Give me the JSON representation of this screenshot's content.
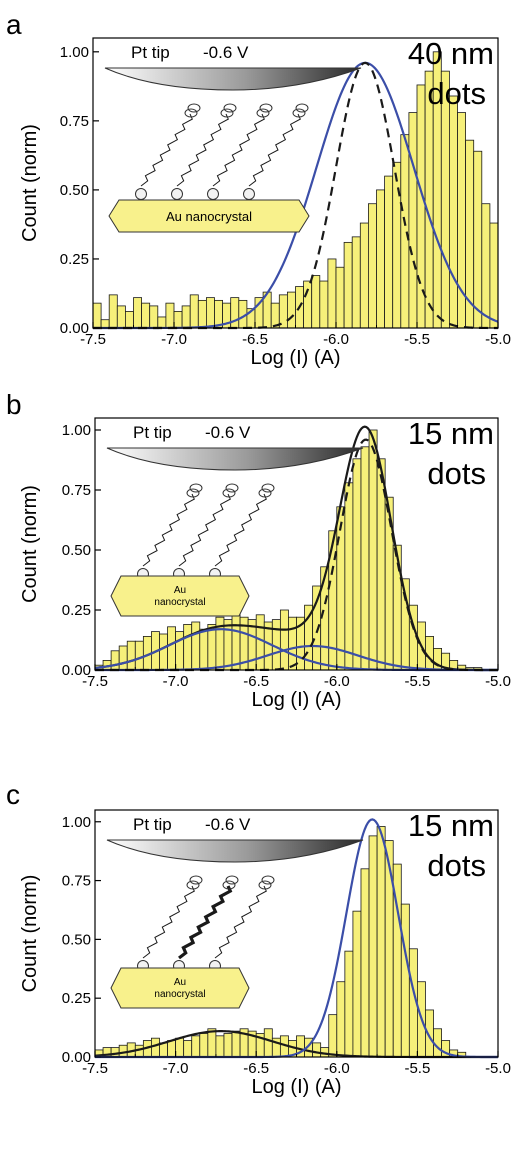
{
  "chart_data": [
    {
      "panel_letter": "a",
      "type": "bar",
      "xlabel": "Log (I) (A)",
      "ylabel": "Count (norm)",
      "xlim": [
        -7.5,
        -5.0
      ],
      "ylim": [
        0,
        1.05
      ],
      "xticks": [
        "-7.5",
        "-7.0",
        "-6.5",
        "-6.0",
        "-5.5",
        "-5.0"
      ],
      "yticks": [
        "0.00",
        "0.25",
        "0.50",
        "0.75",
        "1.00"
      ],
      "annotation": [
        "40 nm",
        "dots"
      ],
      "inset": {
        "tip_label": "Pt tip",
        "bias_label": "-0.6 V",
        "crystal_label": "Au nanocrystal",
        "n_molecules": 4,
        "bold_molecule": -1
      },
      "bins": {
        "x_start": -7.5,
        "width": 0.05,
        "values": [
          0.09,
          0.03,
          0.12,
          0.08,
          0.06,
          0.11,
          0.09,
          0.08,
          0.04,
          0.09,
          0.06,
          0.08,
          0.12,
          0.1,
          0.11,
          0.1,
          0.09,
          0.11,
          0.1,
          0.07,
          0.11,
          0.13,
          0.09,
          0.12,
          0.13,
          0.15,
          0.17,
          0.19,
          0.17,
          0.25,
          0.22,
          0.31,
          0.33,
          0.38,
          0.45,
          0.5,
          0.55,
          0.6,
          0.7,
          0.78,
          0.88,
          0.93,
          1.0,
          0.93,
          0.84,
          0.78,
          0.68,
          0.64,
          0.45,
          0.38,
          0.13,
          0.03
        ]
      },
      "series": [
        {
          "name": "",
          "kind": "gaussian",
          "color": "#3b4ea8",
          "dash": false,
          "mu": -5.82,
          "sigma": 0.3,
          "amp": 0.96
        },
        {
          "name": "",
          "kind": "gaussian",
          "color": "#1a1a1a",
          "dash": true,
          "mu": -5.82,
          "sigma": 0.18,
          "amp": 0.96
        }
      ]
    },
    {
      "panel_letter": "b",
      "type": "bar",
      "xlabel": "Log (I) (A)",
      "ylabel": "Count (norm)",
      "xlim": [
        -7.5,
        -5.0
      ],
      "ylim": [
        0,
        1.05
      ],
      "xticks": [
        "-7.5",
        "-7.0",
        "-6.5",
        "-6.0",
        "-5.5",
        "-5.0"
      ],
      "yticks": [
        "0.00",
        "0.25",
        "0.50",
        "0.75",
        "1.00"
      ],
      "annotation": [
        "15 nm",
        "dots"
      ],
      "inset": {
        "tip_label": "Pt tip",
        "bias_label": "-0.6 V",
        "crystal_label": "Au nanocrystal",
        "n_molecules": 3,
        "bold_molecule": -1
      },
      "bins": {
        "x_start": -7.5,
        "width": 0.05,
        "values": [
          0.02,
          0.04,
          0.08,
          0.1,
          0.12,
          0.12,
          0.14,
          0.16,
          0.15,
          0.18,
          0.16,
          0.19,
          0.2,
          0.17,
          0.19,
          0.22,
          0.21,
          0.24,
          0.22,
          0.21,
          0.23,
          0.2,
          0.21,
          0.25,
          0.22,
          0.22,
          0.27,
          0.35,
          0.43,
          0.58,
          0.68,
          0.78,
          0.88,
          0.93,
          1.0,
          0.88,
          0.72,
          0.52,
          0.38,
          0.27,
          0.2,
          0.14,
          0.09,
          0.07,
          0.04,
          0.02,
          0.01,
          0.01
        ]
      },
      "series": [
        {
          "name": "",
          "kind": "sum",
          "color": "#1a1a1a",
          "dash": false,
          "components": [
            {
              "mu": -5.82,
              "sigma": 0.16,
              "amp": 0.96
            },
            {
              "mu": -6.72,
              "sigma": 0.32,
              "amp": 0.17
            },
            {
              "mu": -6.15,
              "sigma": 0.28,
              "amp": 0.1
            }
          ]
        },
        {
          "name": "",
          "kind": "gaussian",
          "color": "#3b4ea8",
          "dash": false,
          "mu": -6.72,
          "sigma": 0.32,
          "amp": 0.17
        },
        {
          "name": "",
          "kind": "gaussian",
          "color": "#3b4ea8",
          "dash": false,
          "mu": -6.15,
          "sigma": 0.28,
          "amp": 0.1
        },
        {
          "name": "",
          "kind": "gaussian",
          "color": "#1a1a1a",
          "dash": true,
          "mu": -5.82,
          "sigma": 0.16,
          "amp": 0.96
        }
      ]
    },
    {
      "panel_letter": "c",
      "type": "bar",
      "xlabel": "Log (I) (A)",
      "ylabel": "Count (norm)",
      "xlim": [
        -7.5,
        -5.0
      ],
      "ylim": [
        0,
        1.05
      ],
      "xticks": [
        "-7.5",
        "-7.0",
        "-6.5",
        "-6.0",
        "-5.5",
        "-5.0"
      ],
      "yticks": [
        "0.00",
        "0.25",
        "0.50",
        "0.75",
        "1.00"
      ],
      "annotation": [
        "15 nm",
        "dots"
      ],
      "inset": {
        "tip_label": "Pt tip",
        "bias_label": "-0.6 V",
        "crystal_label": "Au nanocrystal",
        "n_molecules": 3,
        "bold_molecule": 1
      },
      "bins": {
        "x_start": -7.5,
        "width": 0.05,
        "values": [
          0.03,
          0.04,
          0.04,
          0.05,
          0.06,
          0.05,
          0.07,
          0.08,
          0.06,
          0.07,
          0.08,
          0.07,
          0.09,
          0.1,
          0.12,
          0.09,
          0.1,
          0.11,
          0.12,
          0.11,
          0.1,
          0.12,
          0.08,
          0.09,
          0.07,
          0.09,
          0.08,
          0.06,
          0.04,
          0.18,
          0.32,
          0.45,
          0.62,
          0.8,
          0.94,
          0.98,
          0.92,
          0.82,
          0.65,
          0.46,
          0.32,
          0.2,
          0.12,
          0.07,
          0.03,
          0.02
        ]
      },
      "series": [
        {
          "name": "",
          "kind": "gaussian",
          "color": "#1a1a1a",
          "dash": false,
          "mu": -6.72,
          "sigma": 0.32,
          "amp": 0.11
        },
        {
          "name": "",
          "kind": "gaussian",
          "color": "#3b4ea8",
          "dash": false,
          "mu": -5.78,
          "sigma": 0.16,
          "amp": 1.01
        }
      ]
    }
  ]
}
